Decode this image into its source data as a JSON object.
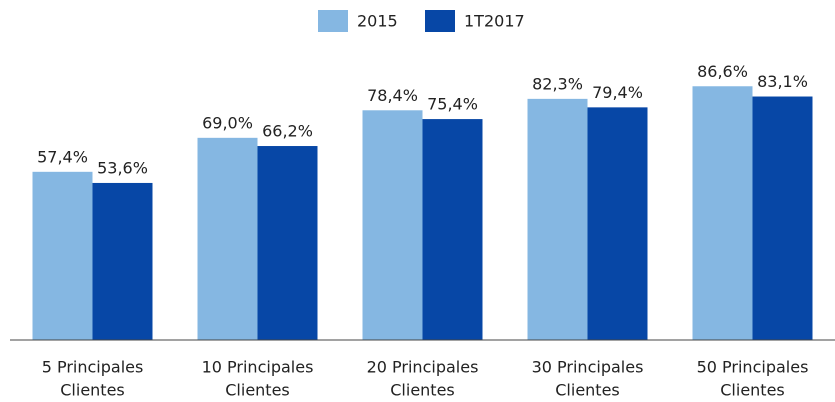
{
  "chart_data": {
    "type": "bar",
    "categories": [
      [
        "5 Principales",
        "Clientes"
      ],
      [
        "10 Principales",
        "Clientes"
      ],
      [
        "20 Principales",
        "Clientes"
      ],
      [
        "30 Principales",
        "Clientes"
      ],
      [
        "50 Principales",
        "Clientes"
      ]
    ],
    "series": [
      {
        "name": "2015",
        "color": "#85b7e2",
        "values": [
          57.4,
          69.0,
          78.4,
          82.3,
          86.6
        ],
        "value_labels": [
          "57,4%",
          "69,0%",
          "78,4%",
          "82,3%",
          "86,6%"
        ]
      },
      {
        "name": "1T2017",
        "color": "#0747a6",
        "values": [
          53.6,
          66.2,
          75.4,
          79.4,
          83.1
        ],
        "value_labels": [
          "53,6%",
          "66,2%",
          "75,4%",
          "79,4%",
          "83,1%"
        ]
      }
    ]
  }
}
